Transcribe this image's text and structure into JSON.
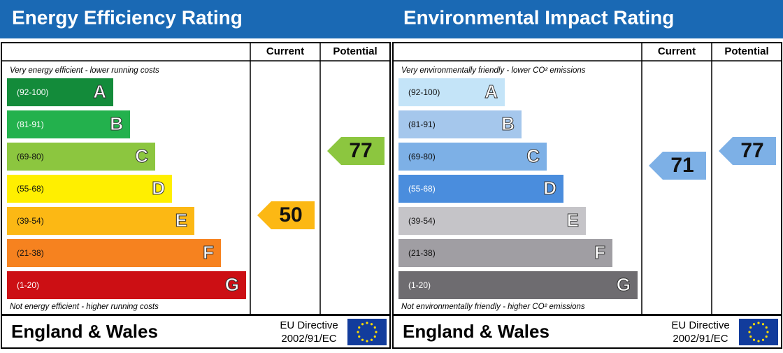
{
  "panels": [
    {
      "title": "Energy Efficiency Rating",
      "columns": [
        "Current",
        "Potential"
      ],
      "top_note": "Very energy efficient - lower running costs",
      "bottom_note": "Not energy efficient - higher running costs",
      "bands": [
        {
          "range": "(92-100)",
          "letter": "A",
          "color": "#138b3a"
        },
        {
          "range": "(81-91)",
          "letter": "B",
          "color": "#23b14d"
        },
        {
          "range": "(69-80)",
          "letter": "C",
          "color": "#8cc63f"
        },
        {
          "range": "(55-68)",
          "letter": "D",
          "color": "#ffef00"
        },
        {
          "range": "(39-54)",
          "letter": "E",
          "color": "#fcb814"
        },
        {
          "range": "(21-38)",
          "letter": "F",
          "color": "#f6821f"
        },
        {
          "range": "(1-20)",
          "letter": "G",
          "color": "#cc0f14"
        }
      ],
      "current": 50,
      "potential": 77,
      "region": "England & Wales",
      "directive": [
        "EU Directive",
        "2002/91/EC"
      ]
    },
    {
      "title": "Environmental Impact Rating",
      "columns": [
        "Current",
        "Potential"
      ],
      "top_note": "Very environmentally friendly - lower CO² emissions",
      "bottom_note": "Not environmentally friendly - higher CO² emissions",
      "bands": [
        {
          "range": "(92-100)",
          "letter": "A",
          "color": "#c4e4f8"
        },
        {
          "range": "(81-91)",
          "letter": "B",
          "color": "#a5c7ec"
        },
        {
          "range": "(69-80)",
          "letter": "C",
          "color": "#7db0e6"
        },
        {
          "range": "(55-68)",
          "letter": "D",
          "color": "#4a8ddd"
        },
        {
          "range": "(39-54)",
          "letter": "E",
          "color": "#c5c4c8"
        },
        {
          "range": "(21-38)",
          "letter": "F",
          "color": "#a09ea3"
        },
        {
          "range": "(1-20)",
          "letter": "G",
          "color": "#6e6c70"
        }
      ],
      "current": 71,
      "potential": 77,
      "region": "England & Wales",
      "directive": [
        "EU Directive",
        "2002/91/EC"
      ]
    }
  ]
}
